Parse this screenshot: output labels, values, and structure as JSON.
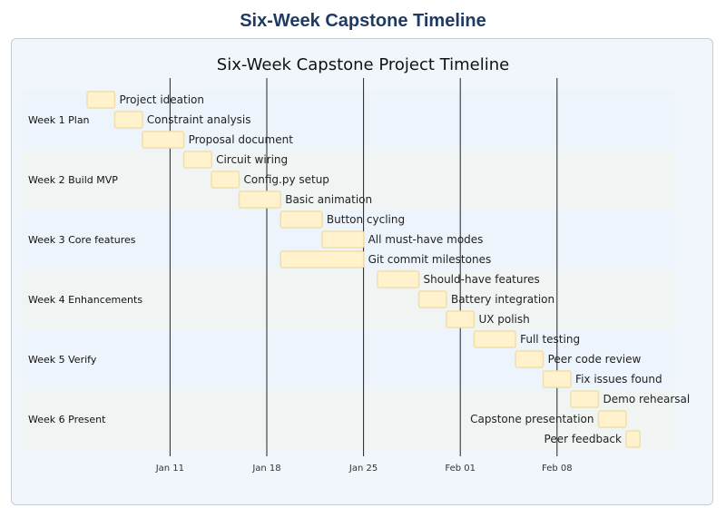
{
  "page_title": "Six-Week Capstone Timeline",
  "chart_data": {
    "type": "gantt",
    "title": "Six-Week Capstone Project Timeline",
    "x_range": [
      "2024-01-05",
      "2024-02-10"
    ],
    "ticks": [
      {
        "date": "2024-01-11",
        "label": "Jan 11"
      },
      {
        "date": "2024-01-18",
        "label": "Jan 18"
      },
      {
        "date": "2024-01-25",
        "label": "Jan 25"
      },
      {
        "date": "2024-02-01",
        "label": "Feb 01"
      },
      {
        "date": "2024-02-08",
        "label": "Feb 08"
      }
    ],
    "sections": [
      {
        "name": "Week 1 Plan",
        "tasks": [
          {
            "name": "Project ideation",
            "start": "2024-01-05",
            "end": "2024-01-07"
          },
          {
            "name": "Constraint analysis",
            "start": "2024-01-07",
            "end": "2024-01-09"
          },
          {
            "name": "Proposal document",
            "start": "2024-01-09",
            "end": "2024-01-12"
          }
        ]
      },
      {
        "name": "Week 2 Build MVP",
        "tasks": [
          {
            "name": "Circuit wiring",
            "start": "2024-01-12",
            "end": "2024-01-14"
          },
          {
            "name": "Config.py setup",
            "start": "2024-01-14",
            "end": "2024-01-16"
          },
          {
            "name": "Basic animation",
            "start": "2024-01-16",
            "end": "2024-01-19"
          }
        ]
      },
      {
        "name": "Week 3 Core features",
        "tasks": [
          {
            "name": "Button cycling",
            "start": "2024-01-19",
            "end": "2024-01-22"
          },
          {
            "name": "All must-have modes",
            "start": "2024-01-22",
            "end": "2024-01-25"
          },
          {
            "name": "Git commit milestones",
            "start": "2024-01-19",
            "end": "2024-01-25"
          }
        ]
      },
      {
        "name": "Week 4 Enhancements",
        "tasks": [
          {
            "name": "Should-have features",
            "start": "2024-01-26",
            "end": "2024-01-29"
          },
          {
            "name": "Battery integration",
            "start": "2024-01-29",
            "end": "2024-01-31"
          },
          {
            "name": "UX polish",
            "start": "2024-01-31",
            "end": "2024-02-02"
          }
        ]
      },
      {
        "name": "Week 5 Verify",
        "tasks": [
          {
            "name": "Full testing",
            "start": "2024-02-02",
            "end": "2024-02-05"
          },
          {
            "name": "Peer code review",
            "start": "2024-02-05",
            "end": "2024-02-07"
          },
          {
            "name": "Fix issues found",
            "start": "2024-02-07",
            "end": "2024-02-09"
          }
        ]
      },
      {
        "name": "Week 6 Present",
        "tasks": [
          {
            "name": "Demo rehearsal",
            "start": "2024-02-09",
            "end": "2024-02-11"
          },
          {
            "name": "Capstone presentation",
            "start": "2024-02-11",
            "end": "2024-02-13"
          },
          {
            "name": "Peer feedback",
            "start": "2024-02-13",
            "end": "2024-02-14"
          }
        ]
      }
    ],
    "colors": {
      "bar_fill": "#fff2cc",
      "bar_stroke": "#f0dfa9",
      "section_band_a": "#eef4fb",
      "section_band_b": "#f0f5f3",
      "gridline": "#222222"
    }
  }
}
